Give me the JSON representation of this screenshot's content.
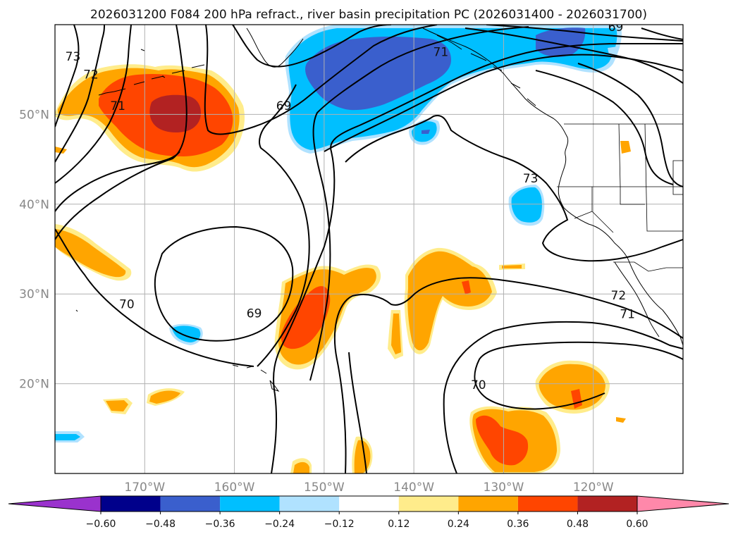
{
  "title": "2026031200 F084 200 hPa refract., river basin precipitation PC (2026031400 - 2026031700)",
  "map": {
    "lon_range": [
      -180,
      -110
    ],
    "lat_range": [
      10,
      60
    ],
    "lon_ticks": [
      -170,
      -160,
      -150,
      -140,
      -130,
      -120
    ],
    "lon_tick_labels": [
      "170°W",
      "160°W",
      "150°W",
      "140°W",
      "130°W",
      "120°W"
    ],
    "lat_ticks": [
      20,
      30,
      40,
      50
    ],
    "lat_tick_labels": [
      "20°N",
      "30°N",
      "40°N",
      "50°N"
    ],
    "grid": true
  },
  "contour_labels": [
    {
      "text": "73",
      "lon": -178,
      "lat": 56
    },
    {
      "text": "72",
      "lon": -176,
      "lat": 54
    },
    {
      "text": "71",
      "lon": -173,
      "lat": 50.5
    },
    {
      "text": "69",
      "lon": -154.5,
      "lat": 50.5
    },
    {
      "text": "71",
      "lon": -137,
      "lat": 56.5
    },
    {
      "text": "69",
      "lon": -117.5,
      "lat": 59.3
    },
    {
      "text": "73",
      "lon": -127,
      "lat": 42.4
    },
    {
      "text": "70",
      "lon": -172,
      "lat": 28.4
    },
    {
      "text": "69",
      "lon": -157.8,
      "lat": 27.4
    },
    {
      "text": "72",
      "lon": -117.2,
      "lat": 29.4
    },
    {
      "text": "71",
      "lon": -116.2,
      "lat": 27.3
    },
    {
      "text": "70",
      "lon": -132.8,
      "lat": 19.4
    }
  ],
  "colorbar": {
    "levels": [
      -0.6,
      -0.48,
      -0.36,
      -0.24,
      -0.12,
      0.12,
      0.24,
      0.36,
      0.48,
      0.6
    ],
    "tick_labels": [
      "−0.60",
      "−0.48",
      "−0.36",
      "−0.24",
      "−0.12",
      "0.12",
      "0.24",
      "0.36",
      "0.48",
      "0.60"
    ],
    "colors": [
      "#9a32cd",
      "#00008b",
      "#3a5fcd",
      "#00bfff",
      "#b0e2ff",
      "#ffffff",
      "#ffec8b",
      "#ffa500",
      "#ff4500",
      "#b22222",
      "#ff88aa"
    ],
    "extend": "both"
  },
  "colors": {
    "contour": "#000000",
    "grid": "#b0b0b0",
    "coast": "#000000"
  }
}
